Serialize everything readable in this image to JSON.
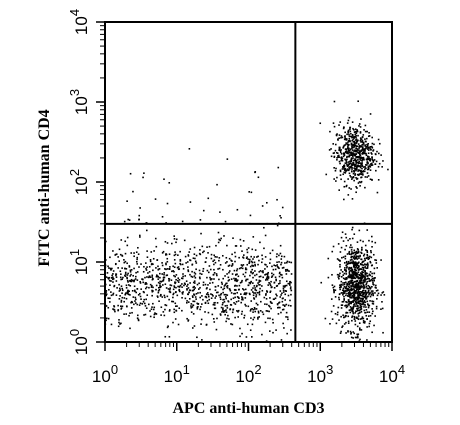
{
  "chart_data": {
    "type": "scatter",
    "title": "",
    "xlabel": "APC anti-human CD3",
    "ylabel": "FITC anti-human CD4",
    "x_scale": "log",
    "y_scale": "log",
    "xlim": [
      1,
      10000
    ],
    "ylim": [
      1,
      10000
    ],
    "x_ticks": [
      {
        "value": 1,
        "base": "10",
        "exp": "0"
      },
      {
        "value": 10,
        "base": "10",
        "exp": "1"
      },
      {
        "value": 100,
        "base": "10",
        "exp": "2"
      },
      {
        "value": 1000,
        "base": "10",
        "exp": "3"
      },
      {
        "value": 10000,
        "base": "10",
        "exp": "4"
      }
    ],
    "y_ticks": [
      {
        "value": 1,
        "base": "10",
        "exp": "0"
      },
      {
        "value": 10,
        "base": "10",
        "exp": "1"
      },
      {
        "value": 100,
        "base": "10",
        "exp": "2"
      },
      {
        "value": 1000,
        "base": "10",
        "exp": "3"
      },
      {
        "value": 10000,
        "base": "10",
        "exp": "4"
      }
    ],
    "gate": {
      "x": 450,
      "y": 30
    },
    "grid": false,
    "legend": "none",
    "point_color": "#000000",
    "populations": [
      {
        "x_center": 10,
        "x_range": [
          1,
          400
        ],
        "y_center": 5,
        "y_range": [
          1.6,
          18
        ],
        "count": 1200
      },
      {
        "x_center": 3200,
        "x_range": [
          1800,
          6000
        ],
        "y_center": 5,
        "y_range": [
          1.5,
          18
        ],
        "count": 900
      },
      {
        "x_center": 3000,
        "x_range": [
          1500,
          5500
        ],
        "y_center": 220,
        "y_range": [
          90,
          500
        ],
        "count": 600
      },
      {
        "x_center": 30,
        "x_range": [
          2,
          400
        ],
        "y_center": 45,
        "y_range": [
          30,
          300
        ],
        "count": 40
      }
    ],
    "points": [
      {
        "x": 15,
        "y": 260
      },
      {
        "x": 180,
        "y": 55
      },
      {
        "x": 250,
        "y": 60
      },
      {
        "x": 70,
        "y": 45
      },
      {
        "x": 3,
        "y": 38
      },
      {
        "x": 40,
        "y": 42
      },
      {
        "x": 300,
        "y": 48
      }
    ]
  }
}
